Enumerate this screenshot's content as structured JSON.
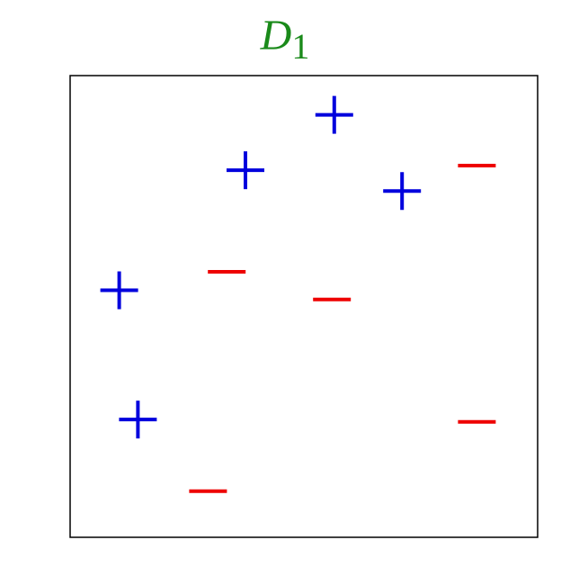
{
  "title": {
    "main": "D",
    "subscript": "1"
  },
  "colors": {
    "positive": "#0000dd",
    "negative": "#ee0000",
    "title": "#1a8a1a",
    "frame": "#000000"
  },
  "chart_data": {
    "type": "scatter",
    "xlim": [
      0,
      1
    ],
    "ylim": [
      0,
      1
    ],
    "points": [
      {
        "label": "+",
        "class": "positive",
        "x": 0.565,
        "y": 0.915
      },
      {
        "label": "+",
        "class": "positive",
        "x": 0.375,
        "y": 0.795
      },
      {
        "label": "+",
        "class": "positive",
        "x": 0.71,
        "y": 0.75
      },
      {
        "label": "+",
        "class": "positive",
        "x": 0.105,
        "y": 0.535
      },
      {
        "label": "+",
        "class": "positive",
        "x": 0.145,
        "y": 0.255
      },
      {
        "label": "−",
        "class": "negative",
        "x": 0.87,
        "y": 0.805
      },
      {
        "label": "−",
        "class": "negative",
        "x": 0.335,
        "y": 0.575
      },
      {
        "label": "−",
        "class": "negative",
        "x": 0.56,
        "y": 0.515
      },
      {
        "label": "−",
        "class": "negative",
        "x": 0.87,
        "y": 0.25
      },
      {
        "label": "−",
        "class": "negative",
        "x": 0.295,
        "y": 0.1
      }
    ]
  }
}
